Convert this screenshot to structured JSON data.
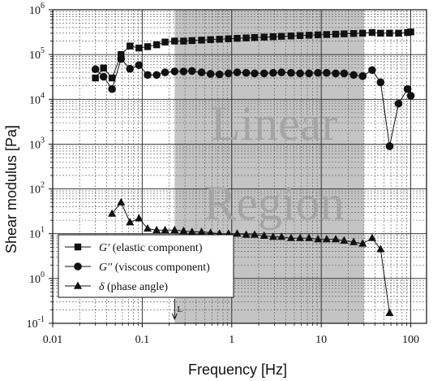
{
  "chart_data": {
    "type": "scatter",
    "xlabel": "Frequency [Hz]",
    "ylabel": "Shear modulus [Pa]",
    "xscale": "log",
    "yscale": "log",
    "xlim": [
      0.01,
      150
    ],
    "ylim": [
      0.1,
      1000000
    ],
    "grid": true,
    "legend_position": "bottom-left",
    "x_ticks": [
      {
        "value": 0.01,
        "label": "0.01"
      },
      {
        "value": 0.1,
        "label": "0.1"
      },
      {
        "value": 1,
        "label": "1"
      },
      {
        "value": 10,
        "label": "10"
      },
      {
        "value": 100,
        "label": "100"
      }
    ],
    "y_ticks": [
      {
        "value": 0.1,
        "base": "10",
        "exp": "-1"
      },
      {
        "value": 1,
        "base": "10",
        "exp": "0"
      },
      {
        "value": 10,
        "base": "10",
        "exp": "1"
      },
      {
        "value": 100,
        "base": "10",
        "exp": "2"
      },
      {
        "value": 1000,
        "base": "10",
        "exp": "3"
      },
      {
        "value": 10000,
        "base": "10",
        "exp": "4"
      },
      {
        "value": 100000,
        "base": "10",
        "exp": "5"
      },
      {
        "value": 1000000,
        "base": "10",
        "exp": "6"
      }
    ],
    "region": {
      "x_start": 0.23,
      "x_end": 30,
      "color": "#c4c4c4",
      "label_lines": [
        "Linear",
        "Region"
      ],
      "marker_text": "L",
      "marker_x": 0.23
    },
    "series": [
      {
        "name": "G′ (elastic component)",
        "name_symbol": "G′",
        "name_rest": " (elastic component)",
        "marker": "square",
        "x": [
          0.03,
          0.037,
          0.046,
          0.058,
          0.073,
          0.092,
          0.115,
          0.145,
          0.18,
          0.23,
          0.29,
          0.36,
          0.46,
          0.58,
          0.73,
          0.92,
          1.15,
          1.45,
          1.8,
          2.3,
          2.9,
          3.6,
          4.6,
          5.8,
          7.3,
          9.2,
          11.5,
          14.5,
          18,
          23,
          29,
          37,
          46,
          58,
          73,
          92,
          100
        ],
        "y": [
          30000,
          50000,
          30000,
          100000,
          155000,
          140000,
          150000,
          165000,
          190000,
          200000,
          200000,
          205000,
          210000,
          215000,
          220000,
          225000,
          230000,
          235000,
          240000,
          245000,
          250000,
          255000,
          260000,
          265000,
          270000,
          275000,
          280000,
          285000,
          290000,
          295000,
          300000,
          310000,
          300000,
          300000,
          300000,
          310000,
          320000
        ]
      },
      {
        "name": "G′′ (viscous component)",
        "name_symbol": "G′′",
        "name_rest": " (viscous component)",
        "marker": "circle",
        "x": [
          0.03,
          0.037,
          0.046,
          0.058,
          0.073,
          0.092,
          0.115,
          0.145,
          0.18,
          0.23,
          0.29,
          0.36,
          0.46,
          0.58,
          0.73,
          0.92,
          1.15,
          1.45,
          1.8,
          2.3,
          2.9,
          3.6,
          4.6,
          5.8,
          7.3,
          9.2,
          11.5,
          14.5,
          18,
          23,
          29,
          37,
          46,
          58,
          73,
          92,
          100
        ],
        "y": [
          47000,
          32000,
          17000,
          80000,
          48000,
          58000,
          35000,
          35000,
          40000,
          42000,
          42000,
          43000,
          40000,
          37000,
          36000,
          38000,
          40000,
          39000,
          38000,
          38000,
          39000,
          40000,
          39000,
          38000,
          38000,
          39000,
          39000,
          38000,
          38000,
          35000,
          33000,
          45000,
          24000,
          900,
          8000,
          17000,
          12000
        ]
      },
      {
        "name": "δ (phase angle)",
        "name_symbol": "δ",
        "name_rest": " (phase angle)",
        "marker": "triangle",
        "x": [
          0.046,
          0.058,
          0.073,
          0.092,
          0.115,
          0.145,
          0.18,
          0.23,
          0.29,
          0.36,
          0.46,
          0.58,
          0.73,
          0.92,
          1.15,
          1.45,
          1.8,
          2.3,
          2.9,
          3.6,
          4.6,
          5.8,
          7.3,
          9.2,
          11.5,
          14.5,
          18,
          23,
          29,
          37,
          46,
          58
        ],
        "y": [
          28,
          50,
          18,
          22,
          13,
          12,
          12,
          12,
          11.5,
          11,
          11,
          10.5,
          10,
          10,
          10,
          9.5,
          9.5,
          9,
          8.5,
          8.5,
          8,
          8,
          8,
          7.5,
          7.5,
          7.5,
          7,
          6.5,
          6,
          8,
          4.5,
          0.17
        ]
      }
    ]
  }
}
